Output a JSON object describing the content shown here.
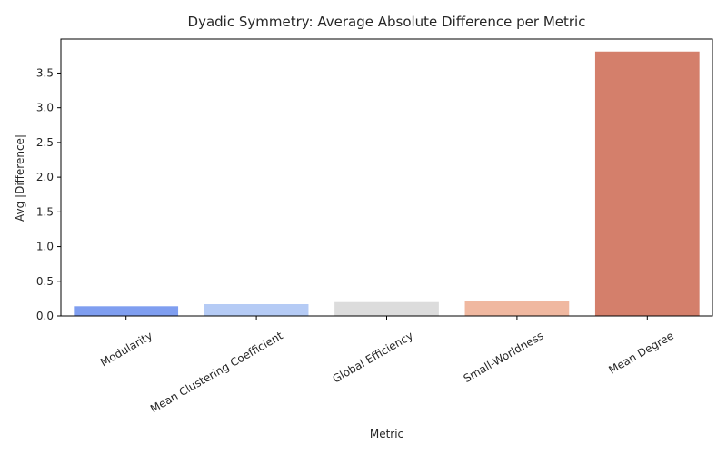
{
  "chart_data": {
    "type": "bar",
    "title": "Dyadic Symmetry: Average Absolute Difference per Metric",
    "xlabel": "Metric",
    "ylabel": "Avg |Difference|",
    "categories": [
      "Modularity",
      "Mean Clustering Coefficient",
      "Global Efficiency",
      "Small-Worldness",
      "Mean Degree"
    ],
    "values": [
      0.14,
      0.17,
      0.2,
      0.22,
      3.81
    ],
    "colors": [
      "#7f9ef0",
      "#b5cbf5",
      "#dcdcdc",
      "#f0b8a0",
      "#d47f6b"
    ],
    "ylim": [
      0,
      3.99
    ],
    "yticks": [
      0.0,
      0.5,
      1.0,
      1.5,
      2.0,
      2.5,
      3.0,
      3.5
    ],
    "ytick_labels": [
      "0.0",
      "0.5",
      "1.0",
      "1.5",
      "2.0",
      "2.5",
      "3.0",
      "3.5"
    ],
    "grid": false,
    "legend": "none"
  }
}
